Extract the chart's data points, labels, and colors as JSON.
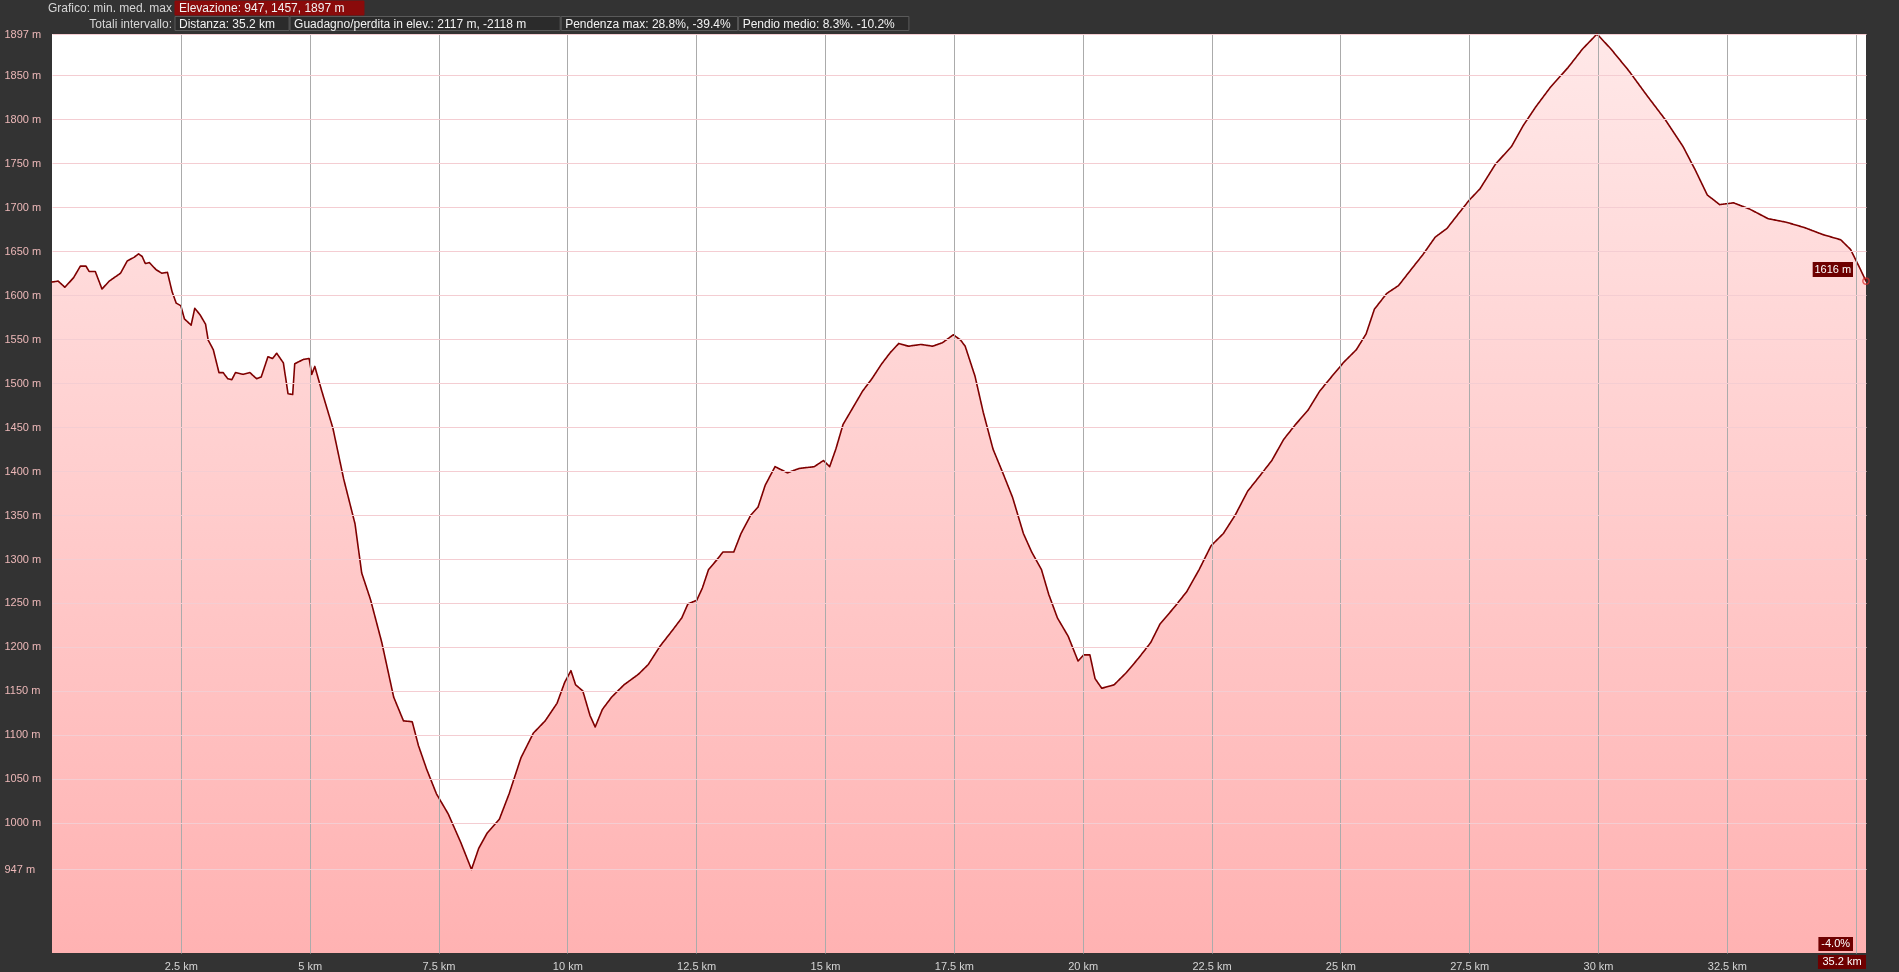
{
  "chart_data": {
    "type": "area",
    "xlim": [
      0,
      35.2
    ],
    "ylim": [
      852,
      1897
    ],
    "xticks": [
      {
        "value": 2.5,
        "label": "2.5 km"
      },
      {
        "value": 5,
        "label": "5 km"
      },
      {
        "value": 7.5,
        "label": "7.5 km"
      },
      {
        "value": 10,
        "label": "10 km"
      },
      {
        "value": 12.5,
        "label": "12.5 km"
      },
      {
        "value": 15,
        "label": "15 km"
      },
      {
        "value": 17.5,
        "label": "17.5 km"
      },
      {
        "value": 20,
        "label": "20 km"
      },
      {
        "value": 22.5,
        "label": "22.5 km"
      },
      {
        "value": 25,
        "label": "25 km"
      },
      {
        "value": 27.5,
        "label": "27.5 km"
      },
      {
        "value": 30,
        "label": "30 km"
      },
      {
        "value": 32.5,
        "label": "32.5 km"
      },
      {
        "value": 35,
        "label": null
      }
    ],
    "yticks": [
      {
        "value": 947,
        "label": "947 m"
      },
      {
        "value": 1000,
        "label": "1000 m"
      },
      {
        "value": 1050,
        "label": "1050 m"
      },
      {
        "value": 1100,
        "label": "1100 m"
      },
      {
        "value": 1150,
        "label": "1150 m"
      },
      {
        "value": 1200,
        "label": "1200 m"
      },
      {
        "value": 1250,
        "label": "1250 m"
      },
      {
        "value": 1300,
        "label": "1300 m"
      },
      {
        "value": 1350,
        "label": "1350 m"
      },
      {
        "value": 1400,
        "label": "1400 m"
      },
      {
        "value": 1450,
        "label": "1450 m"
      },
      {
        "value": 1500,
        "label": "1500 m"
      },
      {
        "value": 1550,
        "label": "1550 m"
      },
      {
        "value": 1600,
        "label": "1600 m"
      },
      {
        "value": 1650,
        "label": "1650 m"
      },
      {
        "value": 1700,
        "label": "1700 m"
      },
      {
        "value": 1750,
        "label": "1750 m"
      },
      {
        "value": 1800,
        "label": "1800 m"
      },
      {
        "value": 1850,
        "label": "1850 m"
      },
      {
        "value": 1897,
        "label": "1897 m"
      }
    ],
    "grid": true,
    "x": [
      0,
      0.12,
      0.25,
      0.42,
      0.55,
      0.66,
      0.72,
      0.84,
      0.97,
      1.11,
      1.33,
      1.46,
      1.59,
      1.68,
      1.75,
      1.81,
      1.89,
      2.02,
      2.13,
      2.24,
      2.33,
      2.41,
      2.5,
      2.57,
      2.7,
      2.77,
      2.87,
      2.98,
      3.03,
      3.13,
      3.24,
      3.32,
      3.41,
      3.49,
      3.56,
      3.71,
      3.84,
      3.97,
      4.06,
      4.19,
      4.28,
      4.36,
      4.49,
      4.58,
      4.67,
      4.71,
      4.88,
      4.99,
      5.04,
      5.1,
      5.23,
      5.45,
      5.66,
      5.88,
      6.01,
      6.18,
      6.4,
      6.63,
      6.82,
      6.99,
      7.11,
      7.27,
      7.46,
      7.69,
      7.93,
      8.14,
      8.28,
      8.44,
      8.68,
      8.87,
      9.1,
      9.34,
      9.57,
      9.8,
      9.95,
      10.07,
      10.16,
      10.3,
      10.44,
      10.54,
      10.68,
      10.86,
      11.1,
      11.38,
      11.57,
      11.8,
      12.04,
      12.22,
      12.34,
      12.51,
      12.62,
      12.74,
      12.9,
      13.02,
      13.23,
      13.37,
      13.56,
      13.7,
      13.84,
      14.03,
      14.27,
      14.5,
      14.79,
      14.97,
      15.09,
      15.21,
      15.35,
      15.56,
      15.73,
      15.91,
      16.1,
      16.27,
      16.43,
      16.62,
      16.86,
      17.09,
      17.28,
      17.49,
      17.63,
      17.72,
      17.91,
      18.07,
      18.26,
      18.45,
      18.64,
      18.85,
      19.01,
      19.2,
      19.34,
      19.51,
      19.72,
      19.91,
      20.02,
      20.14,
      20.24,
      20.37,
      20.61,
      20.85,
      21.08,
      21.32,
      21.5,
      21.79,
      22.02,
      22.26,
      22.49,
      22.73,
      22.96,
      23.2,
      23.43,
      23.67,
      23.9,
      24.13,
      24.37,
      24.6,
      24.84,
      25.07,
      25.31,
      25.5,
      25.66,
      25.9,
      26.13,
      26.37,
      26.6,
      26.84,
      27.07,
      27.31,
      27.5,
      27.71,
      28.01,
      28.32,
      28.55,
      28.79,
      29.07,
      29.42,
      29.7,
      29.98,
      30.25,
      30.6,
      30.95,
      31.3,
      31.65,
      31.89,
      32.12,
      32.36,
      32.63,
      32.94,
      33.3,
      33.65,
      34.0,
      34.36,
      34.71,
      34.9,
      35.07,
      35.2
    ],
    "series": [
      {
        "color": "#7f0000",
        "values": [
          1615,
          1616,
          1609,
          1620,
          1633,
          1633,
          1627,
          1627,
          1607,
          1616,
          1625,
          1639,
          1643,
          1647,
          1644,
          1636,
          1637,
          1629,
          1625,
          1626,
          1604,
          1591,
          1588,
          1573,
          1566,
          1585,
          1578,
          1567,
          1549,
          1538,
          1512,
          1512,
          1505,
          1504,
          1512,
          1510,
          1512,
          1505,
          1507,
          1530,
          1528,
          1534,
          1523,
          1488,
          1487,
          1522,
          1527,
          1528,
          1510,
          1519,
          1492,
          1449,
          1391,
          1340,
          1284,
          1254,
          1205,
          1143,
          1116,
          1115,
          1088,
          1061,
          1033,
          1010,
          978,
          947,
          971,
          988,
          1004,
          1033,
          1074,
          1102,
          1116,
          1136,
          1160,
          1173,
          1157,
          1150,
          1122,
          1109,
          1129,
          1143,
          1157,
          1169,
          1180,
          1201,
          1219,
          1233,
          1249,
          1253,
          1267,
          1288,
          1299,
          1308,
          1308,
          1329,
          1350,
          1359,
          1384,
          1405,
          1398,
          1403,
          1405,
          1412,
          1405,
          1425,
          1453,
          1474,
          1491,
          1505,
          1522,
          1535,
          1545,
          1542,
          1544,
          1542,
          1546,
          1555,
          1549,
          1542,
          1508,
          1467,
          1425,
          1398,
          1370,
          1329,
          1308,
          1288,
          1260,
          1233,
          1212,
          1184,
          1191,
          1191,
          1164,
          1153,
          1157,
          1171,
          1187,
          1205,
          1226,
          1246,
          1263,
          1288,
          1315,
          1329,
          1350,
          1377,
          1394,
          1412,
          1436,
          1453,
          1469,
          1491,
          1508,
          1524,
          1538,
          1556,
          1584,
          1602,
          1611,
          1629,
          1646,
          1666,
          1676,
          1694,
          1708,
          1721,
          1749,
          1769,
          1793,
          1814,
          1836,
          1859,
          1880,
          1897,
          1880,
          1855,
          1827,
          1800,
          1769,
          1742,
          1714,
          1703,
          1705,
          1698,
          1687,
          1683,
          1677,
          1669,
          1663,
          1652,
          1632,
          1616
        ]
      }
    ],
    "annotations": [
      "Grafico: min. med. max",
      "Elevazione: 947, 1457, 1897 m",
      "Totali intervallo:",
      "Distanza: 35.2 km",
      "Guadagno/perdita in elev.: 2117 m, -2118 m",
      "Pendenza max: 28.8%, -39.4%",
      "Pendio medio: 8.3%. -10.2%",
      {
        "text": "1616 m",
        "x": 35.2,
        "y": 1616
      },
      {
        "text": "-4.0%",
        "x": 35.2
      },
      "35.2 km"
    ]
  }
}
